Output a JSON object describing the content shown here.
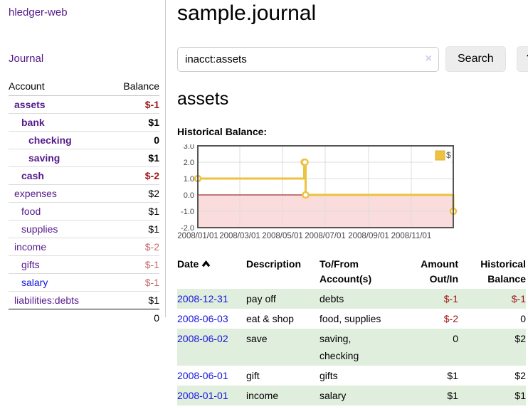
{
  "app": {
    "brand": "hledger-web",
    "nav_journal": "Journal"
  },
  "sidebar": {
    "headers": {
      "account": "Account",
      "balance": "Balance"
    },
    "accounts": [
      {
        "name": "assets",
        "depth": 0,
        "balance": "$-1",
        "bold": true,
        "balance_tone": "negative"
      },
      {
        "name": "bank",
        "depth": 1,
        "balance": "$1",
        "bold": true,
        "balance_tone": "normal"
      },
      {
        "name": "checking",
        "depth": 2,
        "balance": "0",
        "bold": true,
        "balance_tone": "normal"
      },
      {
        "name": "saving",
        "depth": 2,
        "balance": "$1",
        "bold": true,
        "balance_tone": "normal"
      },
      {
        "name": "cash",
        "depth": 1,
        "balance": "$-2",
        "bold": true,
        "balance_tone": "negative"
      },
      {
        "name": "expenses",
        "depth": 0,
        "balance": "$2",
        "bold": false,
        "balance_tone": "normal"
      },
      {
        "name": "food",
        "depth": 1,
        "balance": "$1",
        "bold": false,
        "balance_tone": "normal"
      },
      {
        "name": "supplies",
        "depth": 1,
        "balance": "$1",
        "bold": false,
        "balance_tone": "normal"
      },
      {
        "name": "income",
        "depth": 0,
        "balance": "$-2",
        "bold": false,
        "balance_tone": "negative-light"
      },
      {
        "name": "gifts",
        "depth": 1,
        "balance": "$-1",
        "bold": false,
        "balance_tone": "negative-light"
      },
      {
        "name": "salary",
        "depth": 1,
        "balance": "$-1",
        "bold": false,
        "balance_tone": "negative-light",
        "link_tone": "blue"
      },
      {
        "name": "liabilities:debts",
        "depth": 0,
        "balance": "$1",
        "bold": false,
        "balance_tone": "normal"
      }
    ],
    "total": "0"
  },
  "header": {
    "title": "sample.journal"
  },
  "search": {
    "value": "inacct:assets",
    "clear_icon": "×",
    "button": "Search",
    "help_button": "?"
  },
  "account_page": {
    "title": "assets",
    "chart_label": "Historical Balance:"
  },
  "chart_data": {
    "type": "area",
    "title": "Historical Balance",
    "series": [
      {
        "name": "$",
        "color": "#edc240",
        "points": [
          {
            "date": "2008-01-01",
            "value": 1
          },
          {
            "date": "2008-06-01",
            "value": 2
          },
          {
            "date": "2008-06-02",
            "value": 2
          },
          {
            "date": "2008-06-03",
            "value": 0
          },
          {
            "date": "2008-12-31",
            "value": -1
          }
        ]
      }
    ],
    "x_ticks": [
      "2008/01/01",
      "2008/03/01",
      "2008/05/01",
      "2008/07/01",
      "2008/09/01",
      "2008/11/01"
    ],
    "y_ticks": [
      3.0,
      2.0,
      1.0,
      0.0,
      -1.0,
      -2.0
    ],
    "ylim": [
      -2,
      3
    ],
    "x_range": [
      "2008-01-01",
      "2008-12-31"
    ],
    "grid": true,
    "negative_region_fill": "#fbdcdc",
    "zero_line_color": "#8b0000",
    "legend": {
      "label": "$",
      "position": "top-right"
    }
  },
  "register": {
    "columns": {
      "date": "Date",
      "description": "Description",
      "accounts": "To/From Account(s)",
      "amount": "Amount Out/In",
      "balance": "Historical Balance"
    },
    "rows": [
      {
        "date": "2008-12-31",
        "description": "pay off",
        "accounts": [
          "debts"
        ],
        "amount": "$-1",
        "amount_tone": "negative",
        "balance": "$-1",
        "balance_tone": "negative",
        "shaded": true
      },
      {
        "date": "2008-06-03",
        "description": "eat & shop",
        "accounts": [
          "food",
          "supplies"
        ],
        "amount": "$-2",
        "amount_tone": "negative",
        "balance": "0",
        "balance_tone": "normal",
        "shaded": false
      },
      {
        "date": "2008-06-02",
        "description": "save",
        "accounts": [
          "saving",
          "checking"
        ],
        "amount": "0",
        "amount_tone": "normal",
        "balance": "$2",
        "balance_tone": "normal",
        "shaded": true
      },
      {
        "date": "2008-06-01",
        "description": "gift",
        "accounts": [
          "gifts"
        ],
        "amount": "$1",
        "amount_tone": "normal",
        "balance": "$2",
        "balance_tone": "normal",
        "shaded": false
      },
      {
        "date": "2008-01-01",
        "description": "income",
        "accounts": [
          "salary"
        ],
        "amount": "$1",
        "amount_tone": "normal",
        "balance": "$1",
        "balance_tone": "normal",
        "shaded": true
      }
    ]
  }
}
